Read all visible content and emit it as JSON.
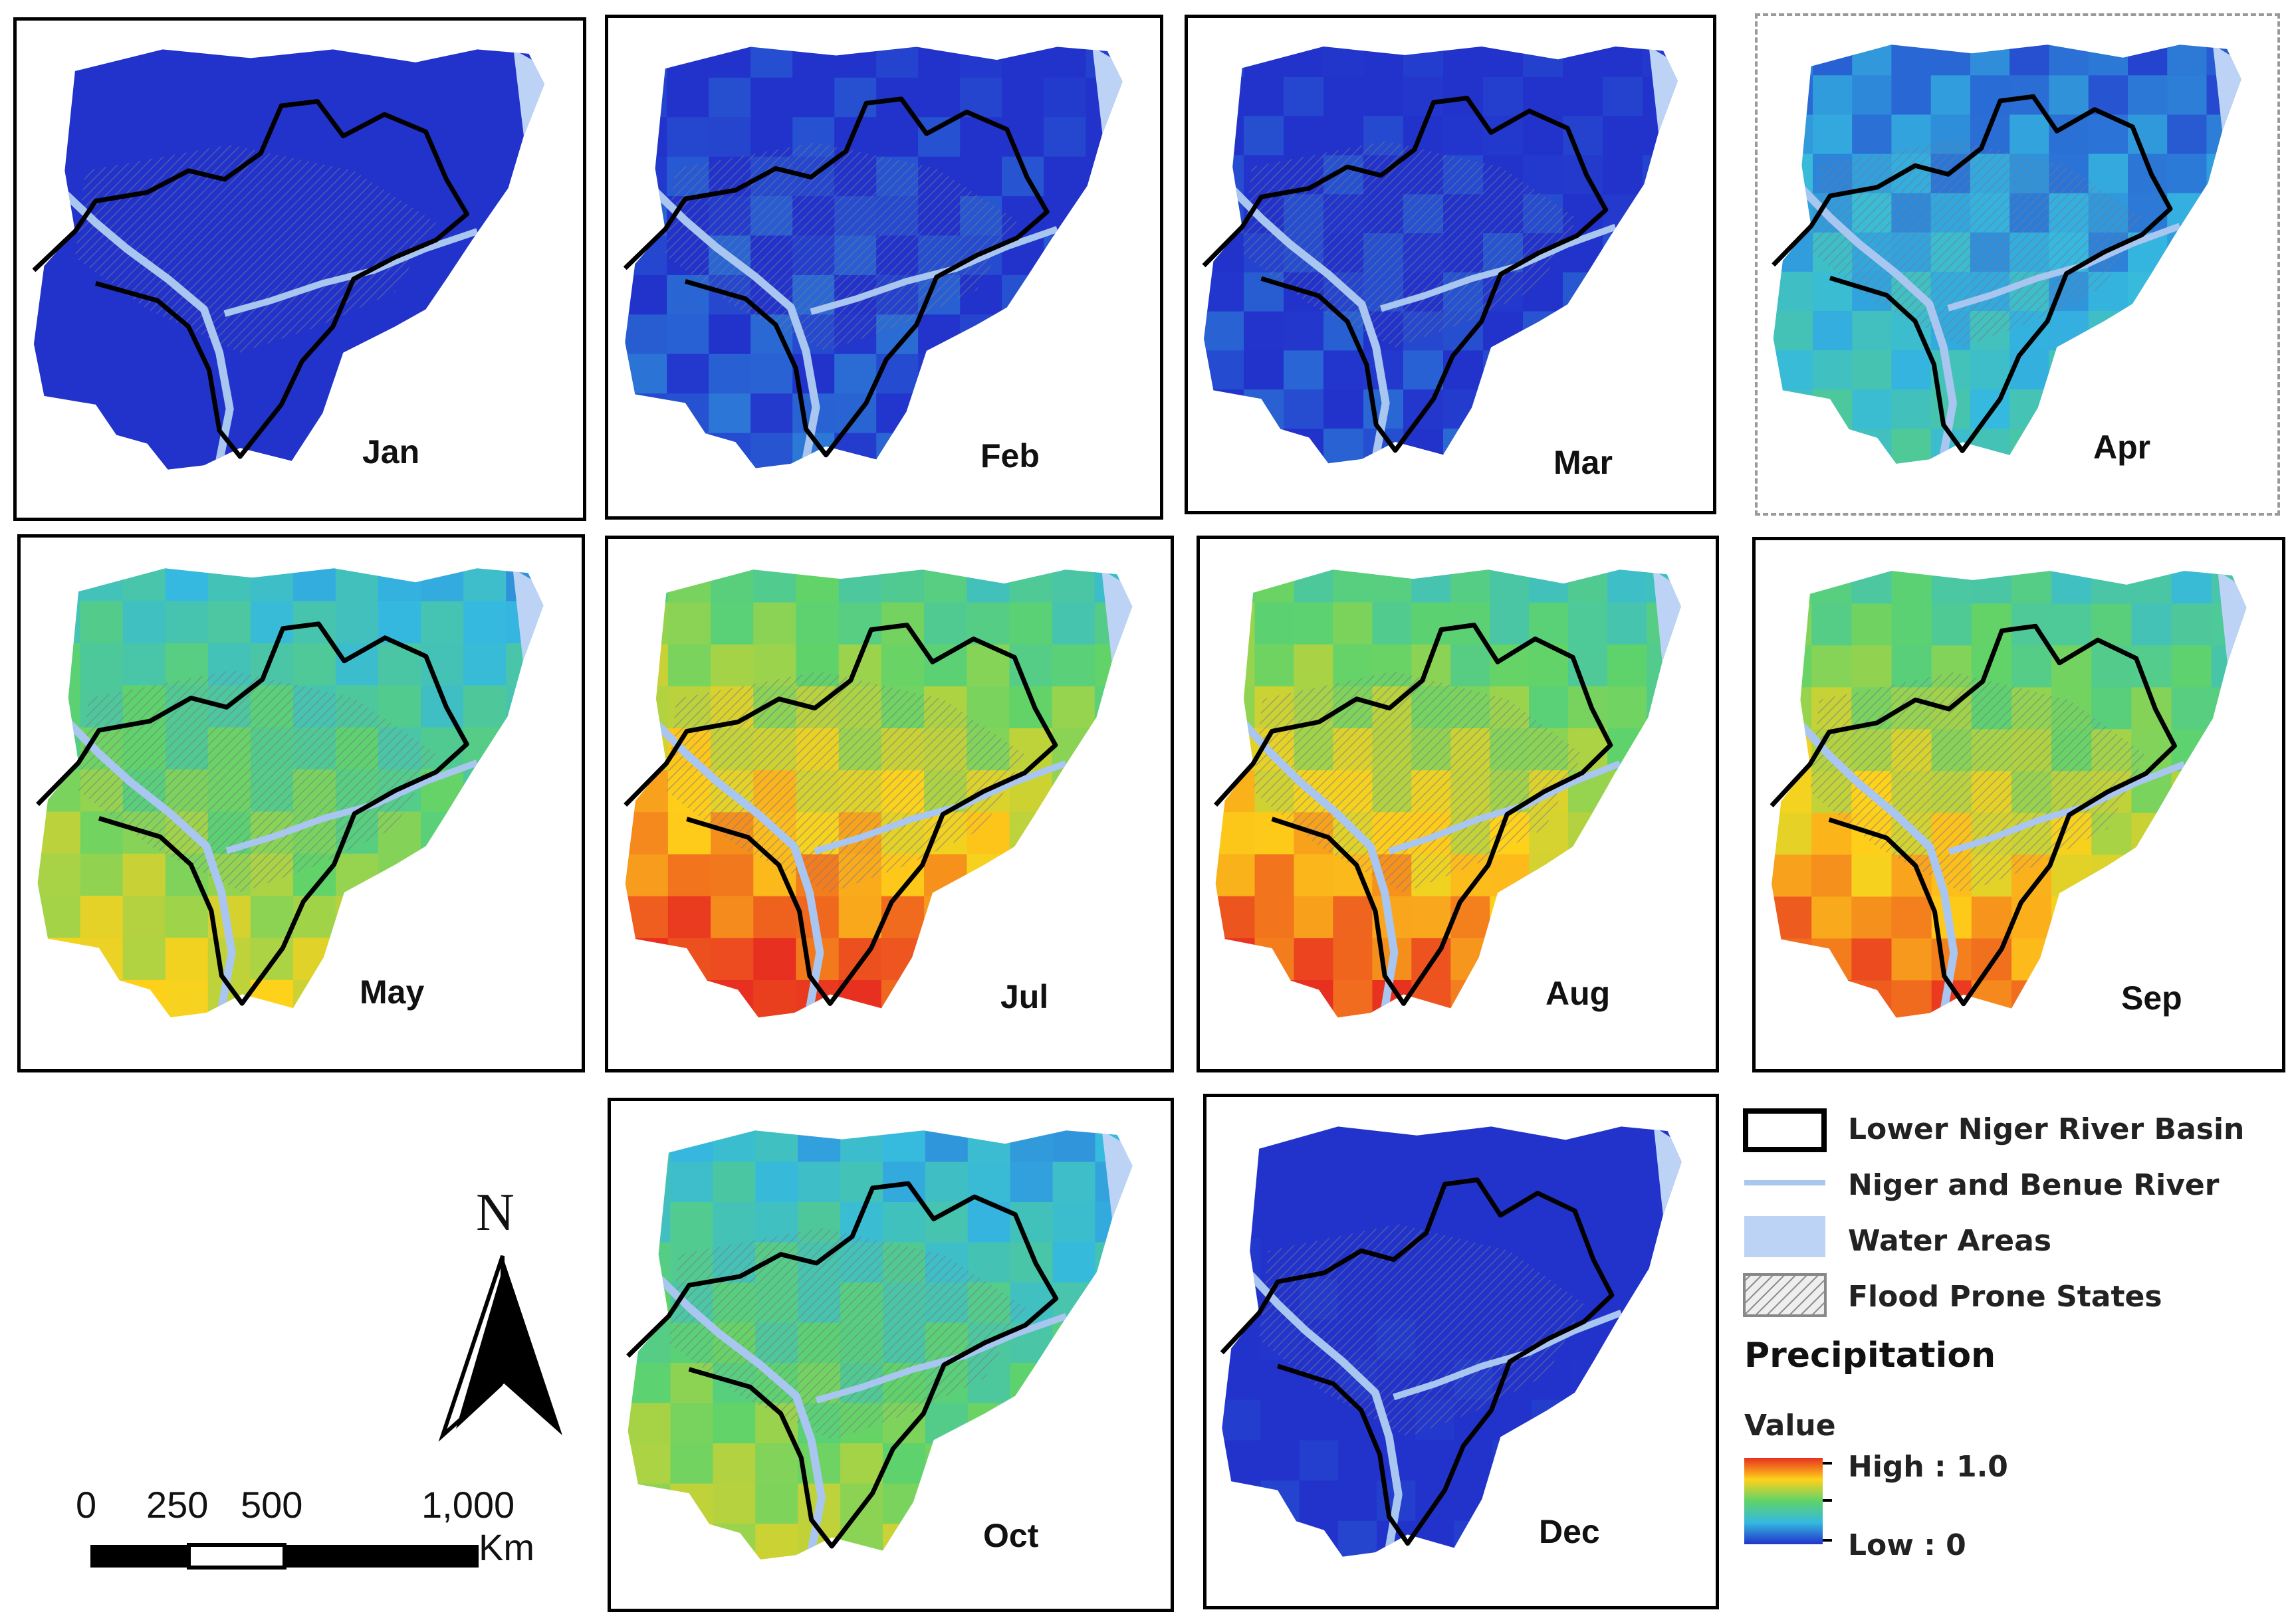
{
  "figure": {
    "panels": [
      {
        "month": "Jan",
        "intensity": 0.02
      },
      {
        "month": "Feb",
        "intensity": 0.12
      },
      {
        "month": "Mar",
        "intensity": 0.1
      },
      {
        "month": "Apr",
        "intensity": 0.3
      },
      {
        "month": "May",
        "intensity": 0.55
      },
      {
        "month": "Jul",
        "intensity": 0.75
      },
      {
        "month": "Aug",
        "intensity": 0.72
      },
      {
        "month": "Sep",
        "intensity": 0.7
      },
      {
        "month": "Oct",
        "intensity": 0.5
      },
      {
        "month": "Dec",
        "intensity": 0.05
      }
    ]
  },
  "legend": {
    "basin": "Lower Niger River Basin",
    "river": "Niger and Benue River",
    "water": "Water Areas",
    "flood": "Flood Prone States",
    "precip_title": "Precipitation",
    "value_label": "Value",
    "high": "High : 1.0",
    "low": "Low : 0"
  },
  "scale_bar": {
    "t0": "0",
    "t250": "250",
    "t500": "500",
    "t1000": "1,000",
    "unit": "Km"
  },
  "north_arrow": {
    "label": "N"
  },
  "colors": {
    "low": "#2233cc",
    "high": "#e83020",
    "water": "#bcd3f5",
    "river": "#a9c6f0",
    "basin": "#000000"
  }
}
